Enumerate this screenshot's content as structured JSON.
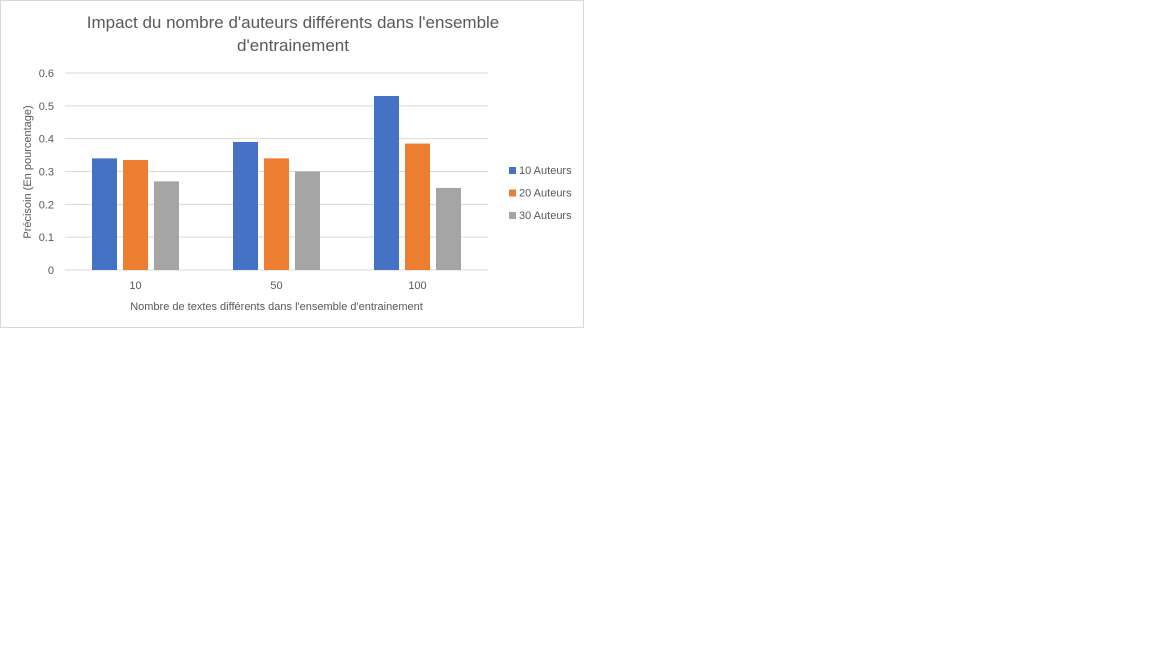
{
  "chart_data": {
    "type": "bar",
    "title": "Impact du nombre d'auteurs différents dans l'ensemble d'entrainement",
    "xlabel": "Nombre de textes différents dans l'ensemble d'entrainement",
    "ylabel": "Précisoin (En pourcentage)",
    "categories": [
      "10",
      "50",
      "100"
    ],
    "ylim": [
      0,
      0.6
    ],
    "yticks": [
      0,
      0.1,
      0.2,
      0.3,
      0.4,
      0.5,
      0.6
    ],
    "ytick_labels": [
      "0",
      "0.1",
      "0.2",
      "0.3",
      "0.4",
      "0.5",
      "0.6"
    ],
    "grid": true,
    "legend_position": "right",
    "series": [
      {
        "name": "10 Auteurs",
        "values": [
          0.34,
          0.39,
          0.53
        ],
        "color": "#4472C4"
      },
      {
        "name": "20 Auteurs",
        "values": [
          0.335,
          0.34,
          0.385
        ],
        "color": "#ED7D31"
      },
      {
        "name": "30 Auteurs",
        "values": [
          0.27,
          0.3,
          0.25
        ],
        "color": "#A5A5A5"
      }
    ]
  }
}
